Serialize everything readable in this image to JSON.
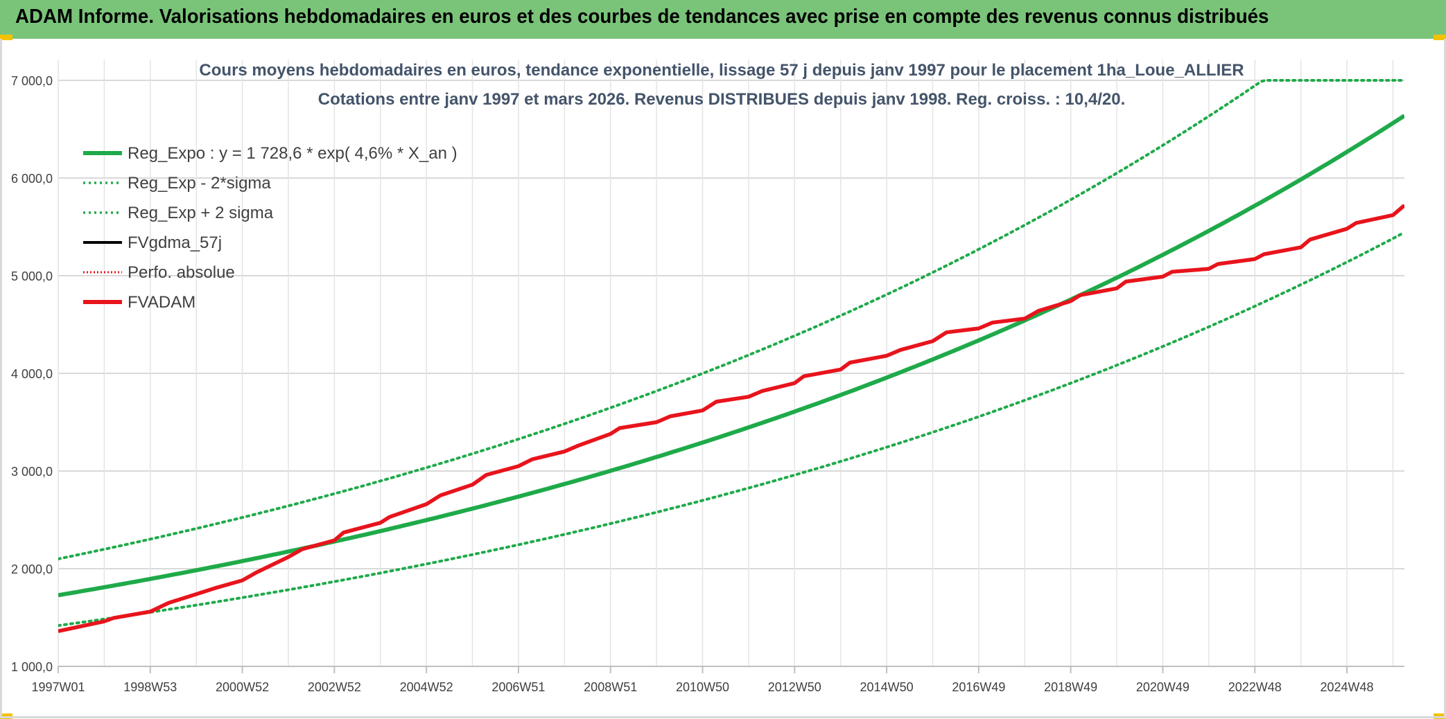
{
  "banner": {
    "title": "ADAM Informe. Valorisations hebdomadaires en euros et des courbes de tendances avec prise en compte des revenus connus distribués"
  },
  "colors": {
    "banner_bg": "#7ac47a",
    "green": "#1faa4a",
    "black": "#000000",
    "red": "#e8141c",
    "grid": "#d9d9d9",
    "axis_text": "#404040",
    "title_text": "#44546a"
  },
  "chart_data": {
    "type": "line",
    "title_line1": "Cours moyens hebdomadaires en euros, tendance exponentielle, lissage 57 j depuis janv 1997 pour le placement 1ha_Loue_ALLIER",
    "title_line2": "Cotations entre janv 1997 et mars 2026. Revenus DISTRIBUES depuis janv 1998. Reg. croiss. : 10,4/20.",
    "ylim": [
      1000,
      7000
    ],
    "xlim": [
      1997.0,
      2026.25
    ],
    "y_ticks": [
      1000,
      2000,
      3000,
      4000,
      5000,
      6000,
      7000
    ],
    "y_tick_labels": [
      "1 000,0",
      "2 000,0",
      "3 000,0",
      "4 000,0",
      "5 000,0",
      "6 000,0",
      "7 000,0"
    ],
    "x_ticks": [
      1997.0,
      1999.0,
      2001.0,
      2003.0,
      2005.0,
      2007.0,
      2009.0,
      2011.0,
      2013.0,
      2015.0,
      2017.0,
      2019.0,
      2021.0,
      2023.0,
      2025.0
    ],
    "x_tick_labels": [
      "1997W01",
      "1998W53",
      "2000W52",
      "2002W52",
      "2004W52",
      "2006W51",
      "2008W51",
      "2010W50",
      "2012W50",
      "2014W50",
      "2016W49",
      "2018W49",
      "2020W49",
      "2022W48",
      "2024W48"
    ],
    "legend": [
      {
        "key": "reg_expo",
        "label": "Reg_Expo : y = 1 728,6 * exp( 4,6% *  X_an )",
        "style": "solid-thick-green"
      },
      {
        "key": "reg_minus",
        "label": "Reg_Exp - 2*sigma",
        "style": "dotted-green"
      },
      {
        "key": "reg_plus",
        "label": "Reg_Exp + 2 sigma",
        "style": "dotted-green"
      },
      {
        "key": "fvgdma",
        "label": "FVgdma_57j",
        "style": "solid-black"
      },
      {
        "key": "perfo",
        "label": "Perfo. absolue",
        "style": "dotted-red"
      },
      {
        "key": "fvadam",
        "label": "FVADAM",
        "style": "solid-thick-red"
      }
    ],
    "regression": {
      "a": 1728.6,
      "b": 0.046,
      "x0": 1997.0
    },
    "series": [
      {
        "name": "Reg_Expo",
        "x": [
          1997,
          2001,
          2005,
          2009,
          2013,
          2017,
          2021,
          2026.25
        ],
        "values": [
          1728.6,
          2080,
          2510,
          3020,
          3620,
          4360,
          5250,
          6600
        ]
      },
      {
        "name": "Reg_Exp - 2*sigma",
        "x": [
          1997,
          2001,
          2005,
          2009,
          2013,
          2017,
          2021,
          2026.25
        ],
        "values": [
          1420,
          1700,
          2060,
          2480,
          2980,
          3580,
          4320,
          5410
        ]
      },
      {
        "name": "Reg_Exp + 2 sigma",
        "x": [
          1997,
          2001,
          2005,
          2009,
          2013,
          2017,
          2021,
          2026.25
        ],
        "values": [
          2100,
          2530,
          3050,
          3670,
          4420,
          5320,
          6420,
          7000
        ]
      },
      {
        "name": "FVADAM",
        "x": [
          1997.0,
          1998.0,
          1998.2,
          1999.0,
          1999.4,
          2000.0,
          2000.4,
          2001.0,
          2001.3,
          2002.0,
          2002.3,
          2003.0,
          2003.2,
          2004.0,
          2004.2,
          2005.0,
          2005.3,
          2006.0,
          2006.3,
          2007.0,
          2007.3,
          2008.0,
          2008.3,
          2009.0,
          2009.2,
          2010.0,
          2010.3,
          2011.0,
          2011.3,
          2012.0,
          2012.3,
          2013.0,
          2013.2,
          2014.0,
          2014.2,
          2015.0,
          2015.3,
          2016.0,
          2016.3,
          2017.0,
          2017.3,
          2018.0,
          2018.3,
          2019.0,
          2019.2,
          2020.0,
          2020.2,
          2021.0,
          2021.2,
          2022.0,
          2022.2,
          2023.0,
          2023.2,
          2024.0,
          2024.2,
          2025.0,
          2025.2,
          2026.0,
          2026.25
        ],
        "values": [
          1360,
          1460,
          1495,
          1560,
          1650,
          1740,
          1800,
          1880,
          1960,
          2120,
          2200,
          2290,
          2370,
          2470,
          2530,
          2660,
          2750,
          2860,
          2960,
          3050,
          3120,
          3200,
          3260,
          3380,
          3440,
          3500,
          3560,
          3620,
          3710,
          3760,
          3820,
          3900,
          3970,
          4040,
          4110,
          4180,
          4240,
          4330,
          4420,
          4460,
          4520,
          4560,
          4640,
          4740,
          4800,
          4870,
          4940,
          4990,
          5040,
          5070,
          5120,
          5170,
          5220,
          5290,
          5370,
          5480,
          5540,
          5620,
          5720
        ]
      }
    ]
  }
}
